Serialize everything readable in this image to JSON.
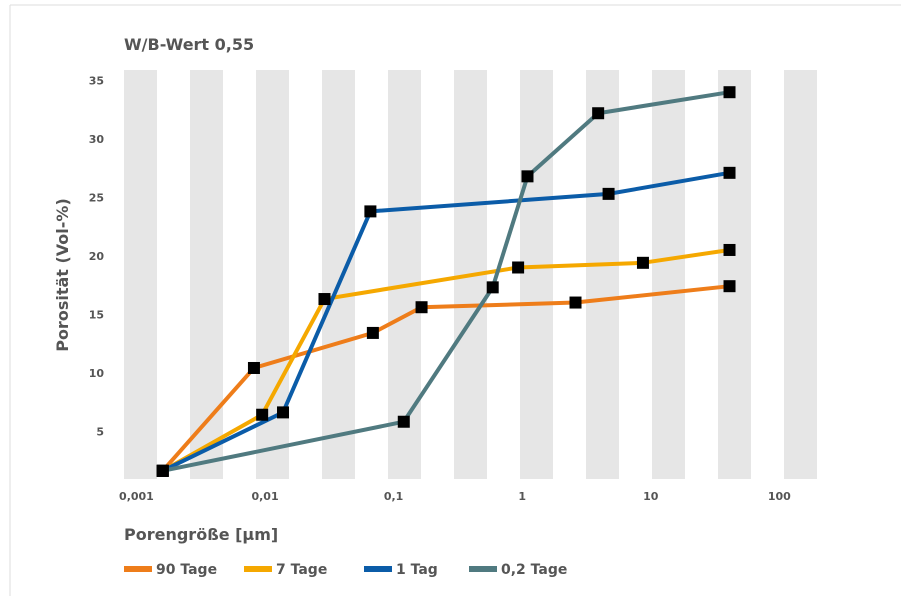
{
  "chart_data": {
    "type": "line",
    "title": "W/B-Wert 0,55",
    "y_label": "Porosität (Vol-%)",
    "x_label": "Porengröße [µm]",
    "log_x": true,
    "xlim": [
      0.0008,
      200
    ],
    "ylim": [
      1,
      36
    ],
    "xticks": [
      {
        "value": 0.001,
        "label": "0,001"
      },
      {
        "value": 0.01,
        "label": "0,01"
      },
      {
        "value": 0.1,
        "label": "0,1"
      },
      1,
      10,
      100
    ],
    "yticks": [
      5,
      10,
      15,
      20,
      25,
      30,
      35
    ],
    "series": [
      {
        "name": "90 Tage",
        "color": "#ee7d1a",
        "x": [
          0.0016,
          0.0082,
          0.069,
          0.165,
          2.6,
          41
        ],
        "values": [
          1.7,
          10.5,
          13.5,
          15.7,
          16.1,
          17.5
        ]
      },
      {
        "name": "7 Tage",
        "color": "#f5a800",
        "x": [
          0.0016,
          0.0095,
          0.029,
          0.93,
          8.7,
          41
        ],
        "values": [
          1.7,
          6.5,
          16.4,
          19.1,
          19.5,
          20.6
        ]
      },
      {
        "name": "1 Tag",
        "color": "#0b5ca8",
        "x": [
          0.0016,
          0.0138,
          0.066,
          4.7,
          41
        ],
        "values": [
          1.7,
          6.7,
          23.9,
          25.4,
          27.2
        ]
      },
      {
        "name": "0,2 Tage",
        "color": "#507a80",
        "x": [
          0.0016,
          0.12,
          0.59,
          1.1,
          3.9,
          41
        ],
        "values": [
          1.7,
          5.9,
          17.4,
          26.9,
          32.3,
          34.1
        ]
      }
    ]
  }
}
